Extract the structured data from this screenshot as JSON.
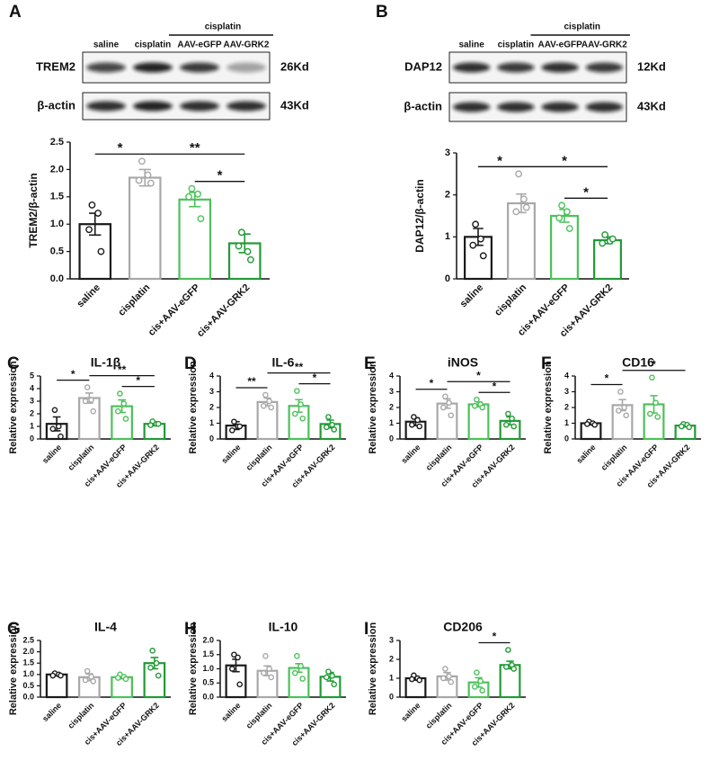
{
  "blots": [
    {
      "lanes": [
        "saline",
        "cisplatin",
        "AAV-eGFP",
        "AAV-GRK2"
      ],
      "group": "cisplatin",
      "rows": [
        {
          "protein": "TREM2",
          "size": "26Kd"
        },
        {
          "protein": "β-actin",
          "size": "43Kd"
        }
      ]
    },
    {
      "lanes": [
        "saline",
        "cisplatin",
        "AAV-eGFP",
        "AAV-GRK2"
      ],
      "group": "cisplatin",
      "rows": [
        {
          "protein": "DAP12",
          "size": "12Kd"
        },
        {
          "protein": "β-actin",
          "size": "43Kd"
        }
      ]
    }
  ],
  "chart_data": [
    {
      "type": "bar",
      "label": "A",
      "ylabel": "TREM2/β-actin",
      "categories": [
        "saline",
        "cisplatin",
        "cis+AAV-eGFP",
        "cis+AAV-GRK2"
      ],
      "colors": [
        "#1a1a1a",
        "#a8a8a8",
        "#4cc15a",
        "#229a36"
      ],
      "values": [
        1.0,
        1.85,
        1.45,
        0.65
      ],
      "errors": [
        0.2,
        0.15,
        0.13,
        0.17
      ],
      "points": [
        [
          1.35,
          1.2,
          0.9,
          0.5
        ],
        [
          2.15,
          1.9,
          1.8,
          1.75
        ],
        [
          1.65,
          1.55,
          1.5,
          1.1
        ],
        [
          0.85,
          0.5,
          0.6,
          0.35
        ]
      ],
      "ylim": [
        0,
        2.5
      ],
      "yticks": [
        {
          "value": 0,
          "label": "0.0"
        },
        0.5,
        {
          "value": 1,
          "label": "1.0"
        },
        1.5,
        {
          "value": 2,
          "label": "2.0"
        },
        2.5
      ],
      "significance": [
        {
          "from": "saline",
          "to": "cisplatin",
          "text": "*"
        },
        {
          "from": "cisplatin",
          "to": "cis+AAV-GRK2",
          "text": "**"
        },
        {
          "from": "cis+AAV-eGFP",
          "to": "cis+AAV-GRK2",
          "text": "*"
        }
      ]
    },
    {
      "type": "bar",
      "label": "B",
      "ylabel": "DAP12/β-actin",
      "categories": [
        "saline",
        "cisplatin",
        "cis+AAV-eGFP",
        "cis+AAV-GRK2"
      ],
      "colors": [
        "#1a1a1a",
        "#a8a8a8",
        "#4cc15a",
        "#229a36"
      ],
      "values": [
        1.0,
        1.8,
        1.5,
        0.92
      ],
      "errors": [
        0.2,
        0.22,
        0.15,
        0.08
      ],
      "points": [
        [
          1.3,
          0.95,
          0.8,
          0.55
        ],
        [
          2.5,
          1.9,
          1.6,
          1.7
        ],
        [
          1.75,
          1.6,
          1.45,
          1.2
        ],
        [
          1.05,
          0.9,
          0.85,
          0.95
        ]
      ],
      "ylim": [
        0,
        3
      ],
      "yticks": [
        0,
        1,
        2,
        3
      ],
      "significance": [
        {
          "from": "saline",
          "to": "cisplatin",
          "text": "*"
        },
        {
          "from": "cisplatin",
          "to": "cis+AAV-GRK2",
          "text": "*"
        },
        {
          "from": "cis+AAV-eGFP",
          "to": "cis+AAV-GRK2",
          "text": "*"
        }
      ]
    },
    {
      "type": "bar",
      "label": "C",
      "title": "IL-1β",
      "ylabel": "Relative expression",
      "categories": [
        "saline",
        "cisplatin",
        "cis+AAV-eGFP",
        "cis+AAV-GRK2"
      ],
      "colors": [
        "#1a1a1a",
        "#a8a8a8",
        "#4cc15a",
        "#229a36"
      ],
      "values": [
        1.2,
        3.25,
        2.6,
        1.2
      ],
      "errors": [
        0.55,
        0.4,
        0.5,
        0.15
      ],
      "points": [
        [
          2.3,
          1.0,
          0.8,
          0.2
        ],
        [
          4.1,
          3.1,
          3.0,
          2.2
        ],
        [
          3.6,
          2.8,
          2.2,
          1.6
        ],
        [
          1.4,
          1.2,
          1.1,
          1.2
        ]
      ],
      "ylim": [
        0,
        5
      ],
      "yticks": [
        0,
        1,
        2,
        3,
        4,
        5
      ],
      "significance": [
        {
          "from": "saline",
          "to": "cisplatin",
          "text": "*"
        },
        {
          "from": "cisplatin",
          "to": "cis+AAV-GRK2",
          "text": "**"
        },
        {
          "from": "cis+AAV-eGFP",
          "to": "cis+AAV-GRK2",
          "text": "*"
        }
      ]
    },
    {
      "type": "bar",
      "label": "D",
      "title": "IL-6",
      "ylabel": "Relative expression",
      "categories": [
        "saline",
        "cisplatin",
        "cis+AAV-eGFP",
        "cis+AAV-GRK2"
      ],
      "colors": [
        "#1a1a1a",
        "#a8a8a8",
        "#4cc15a",
        "#229a36"
      ],
      "values": [
        0.85,
        2.35,
        2.1,
        0.95
      ],
      "errors": [
        0.25,
        0.25,
        0.4,
        0.25
      ],
      "points": [
        [
          1.1,
          0.8,
          0.55,
          0.8
        ],
        [
          2.8,
          2.4,
          2.1,
          2.0
        ],
        [
          3.05,
          2.2,
          1.6,
          1.3
        ],
        [
          1.4,
          0.9,
          0.75,
          0.6
        ]
      ],
      "ylim": [
        0,
        4
      ],
      "yticks": [
        0,
        1,
        2,
        3,
        4
      ],
      "significance": [
        {
          "from": "saline",
          "to": "cisplatin",
          "text": "**"
        },
        {
          "from": "cisplatin",
          "to": "cis+AAV-GRK2",
          "text": "**"
        },
        {
          "from": "cis+AAV-eGFP",
          "to": "cis+AAV-GRK2",
          "text": "*"
        }
      ]
    },
    {
      "type": "bar",
      "label": "E",
      "title": "iNOS",
      "ylabel": "Relative expression",
      "categories": [
        "saline",
        "cisplatin",
        "cis+AAV-eGFP",
        "cis+AAV-GRK2"
      ],
      "colors": [
        "#1a1a1a",
        "#a8a8a8",
        "#4cc15a",
        "#229a36"
      ],
      "values": [
        1.1,
        2.25,
        2.2,
        1.15
      ],
      "errors": [
        0.25,
        0.3,
        0.15,
        0.25
      ],
      "points": [
        [
          1.4,
          1.2,
          0.9,
          0.8
        ],
        [
          2.7,
          2.3,
          2.0,
          1.5
        ],
        [
          2.5,
          2.2,
          2.1,
          2.0
        ],
        [
          1.6,
          1.3,
          0.9,
          0.8
        ]
      ],
      "ylim": [
        0,
        4
      ],
      "yticks": [
        0,
        1,
        2,
        3,
        4
      ],
      "significance": [
        {
          "from": "saline",
          "to": "cisplatin",
          "text": "*"
        },
        {
          "from": "cisplatin",
          "to": "cis+AAV-GRK2",
          "text": "*"
        },
        {
          "from": "cis+AAV-eGFP",
          "to": "cis+AAV-GRK2",
          "text": "*"
        }
      ]
    },
    {
      "type": "bar",
      "label": "F",
      "title": "CD16",
      "ylabel": "Relative expression",
      "categories": [
        "saline",
        "cisplatin",
        "cis+AAV-eGFP",
        "cis+AAV-GRK2"
      ],
      "colors": [
        "#1a1a1a",
        "#a8a8a8",
        "#4cc15a",
        "#229a36"
      ],
      "values": [
        1.0,
        2.15,
        2.2,
        0.85
      ],
      "errors": [
        0.1,
        0.35,
        0.55,
        0.08
      ],
      "points": [
        [
          1.1,
          1.0,
          0.95,
          0.9
        ],
        [
          3.0,
          2.0,
          1.8,
          1.5
        ],
        [
          3.9,
          2.3,
          1.6,
          1.4
        ],
        [
          0.95,
          0.9,
          0.8,
          0.75
        ]
      ],
      "ylim": [
        0,
        4
      ],
      "yticks": [
        0,
        1,
        2,
        3,
        4
      ],
      "significance": [
        {
          "from": "saline",
          "to": "cisplatin",
          "text": "*"
        },
        {
          "from": "cisplatin",
          "to": "cis+AAV-GRK2",
          "text": "*"
        }
      ]
    },
    {
      "type": "bar",
      "label": "G",
      "title": "IL-4",
      "ylabel": "Relative expression",
      "categories": [
        "saline",
        "cisplatin",
        "cis+AAV-eGFP",
        "cis+AAV-GRK2"
      ],
      "colors": [
        "#1a1a1a",
        "#a8a8a8",
        "#4cc15a",
        "#229a36"
      ],
      "values": [
        1.0,
        0.88,
        0.88,
        1.5
      ],
      "errors": [
        0.05,
        0.15,
        0.07,
        0.25
      ],
      "points": [
        [
          1.05,
          1.0,
          0.95,
          0.95
        ],
        [
          1.15,
          0.9,
          0.75,
          0.7
        ],
        [
          1.0,
          0.9,
          0.85,
          0.8
        ],
        [
          2.05,
          1.5,
          1.3,
          0.95
        ]
      ],
      "ylim": [
        0,
        2.5
      ],
      "yticks": [
        {
          "value": 0,
          "label": "0.0"
        },
        0.5,
        {
          "value": 1,
          "label": "1.0"
        },
        1.5,
        {
          "value": 2,
          "label": "2.0"
        },
        2.5
      ],
      "significance": []
    },
    {
      "type": "bar",
      "label": "H",
      "title": "IL-10",
      "ylabel": "Relative expression",
      "categories": [
        "saline",
        "cisplatin",
        "cis+AAV-eGFP",
        "cis+AAV-GRK2"
      ],
      "colors": [
        "#1a1a1a",
        "#a8a8a8",
        "#4cc15a",
        "#229a36"
      ],
      "values": [
        1.12,
        0.93,
        1.03,
        0.72
      ],
      "errors": [
        0.22,
        0.17,
        0.15,
        0.15
      ],
      "points": [
        [
          1.5,
          1.4,
          1.0,
          0.45
        ],
        [
          1.45,
          1.0,
          0.85,
          0.7
        ],
        [
          1.45,
          1.1,
          0.85,
          0.65
        ],
        [
          0.9,
          0.75,
          0.7,
          0.45
        ]
      ],
      "ylim": [
        0,
        2
      ],
      "yticks": [
        {
          "value": 0,
          "label": "0.0"
        },
        0.5,
        {
          "value": 1,
          "label": "1.0"
        },
        1.5,
        {
          "value": 2,
          "label": "2.0"
        }
      ],
      "significance": []
    },
    {
      "type": "bar",
      "label": "I",
      "title": "CD206",
      "ylabel": "Relative expression",
      "categories": [
        "saline",
        "cisplatin",
        "cis+AAV-eGFP",
        "cis+AAV-GRK2"
      ],
      "colors": [
        "#1a1a1a",
        "#a8a8a8",
        "#4cc15a",
        "#229a36"
      ],
      "values": [
        1.0,
        1.1,
        0.78,
        1.7
      ],
      "errors": [
        0.1,
        0.2,
        0.25,
        0.2
      ],
      "points": [
        [
          1.15,
          1.0,
          0.95,
          0.9
        ],
        [
          1.5,
          1.1,
          1.0,
          0.8
        ],
        [
          1.3,
          0.85,
          0.55,
          0.35
        ],
        [
          2.5,
          1.7,
          1.6,
          1.5
        ]
      ],
      "ylim": [
        0,
        3
      ],
      "yticks": [
        0,
        1,
        2,
        3
      ],
      "significance": [
        {
          "from": "cis+AAV-eGFP",
          "to": "cis+AAV-GRK2",
          "text": "*"
        }
      ]
    }
  ]
}
